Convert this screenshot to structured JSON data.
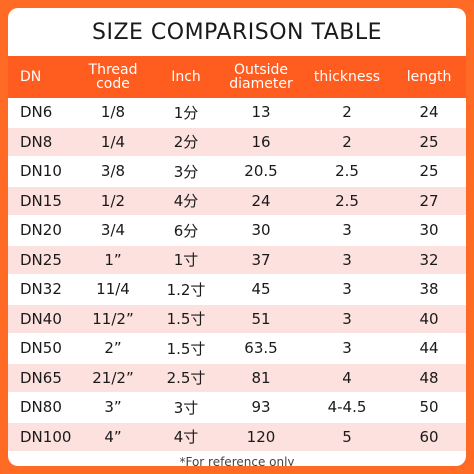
{
  "title": "SIZE COMPARISON TABLE",
  "columns": [
    "DN",
    "Thread\ncode",
    "Inch",
    "Outside\ndiameter",
    "thickness",
    "length"
  ],
  "rows": [
    [
      "DN6",
      "1/8",
      "1分",
      "13",
      "2",
      "24"
    ],
    [
      "DN8",
      "1/4",
      "2分",
      "16",
      "2",
      "25"
    ],
    [
      "DN10",
      "3/8",
      "3分",
      "20.5",
      "2.5",
      "25"
    ],
    [
      "DN15",
      "1/2",
      "4分",
      "24",
      "2.5",
      "27"
    ],
    [
      "DN20",
      "3/4",
      "6分",
      "30",
      "3",
      "30"
    ],
    [
      "DN25",
      "1”",
      "1寸",
      "37",
      "3",
      "32"
    ],
    [
      "DN32",
      "11/4",
      "1.2寸",
      "45",
      "3",
      "38"
    ],
    [
      "DN40",
      "11/2”",
      "1.5寸",
      "51",
      "3",
      "40"
    ],
    [
      "DN50",
      "2”",
      "1.5寸",
      "63.5",
      "3",
      "44"
    ],
    [
      "DN65",
      "21/2”",
      "2.5寸",
      "81",
      "4",
      "48"
    ],
    [
      "DN80",
      "3”",
      "3寸",
      "93",
      "4-4.5",
      "50"
    ],
    [
      "DN100",
      "4”",
      "4寸",
      "120",
      "5",
      "60"
    ]
  ],
  "footnote": "*For reference only",
  "colors": {
    "accent": "#ff5c1f",
    "border": "#ff6a24",
    "row_alt": "#fde1de"
  }
}
